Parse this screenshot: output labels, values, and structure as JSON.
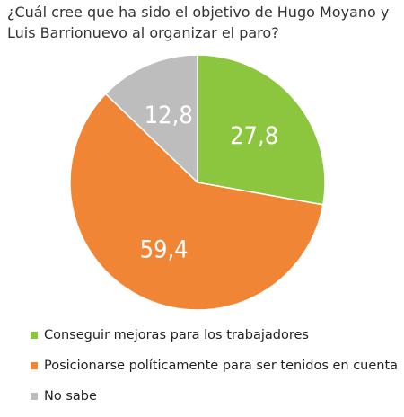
{
  "chart_data": {
    "type": "pie",
    "title": "¿Cuál cree que ha sido el objetivo de Hugo Moyano y Luis Barrionuevo al organizar el paro?",
    "slices": [
      {
        "label": "Conseguir mejoras para los trabajadores",
        "value": 27.8,
        "display": "27,8",
        "color": "#8cc63f"
      },
      {
        "label": "Posicionarse políticamente para ser tenidos en cuenta",
        "value": 59.4,
        "display": "59,4",
        "color": "#f08535"
      },
      {
        "label": "No sabe",
        "value": 12.8,
        "display": "12,8",
        "color": "#bdbdbd"
      }
    ],
    "start": "12 o'clock",
    "direction": "clockwise",
    "legend_position": "bottom-left"
  }
}
